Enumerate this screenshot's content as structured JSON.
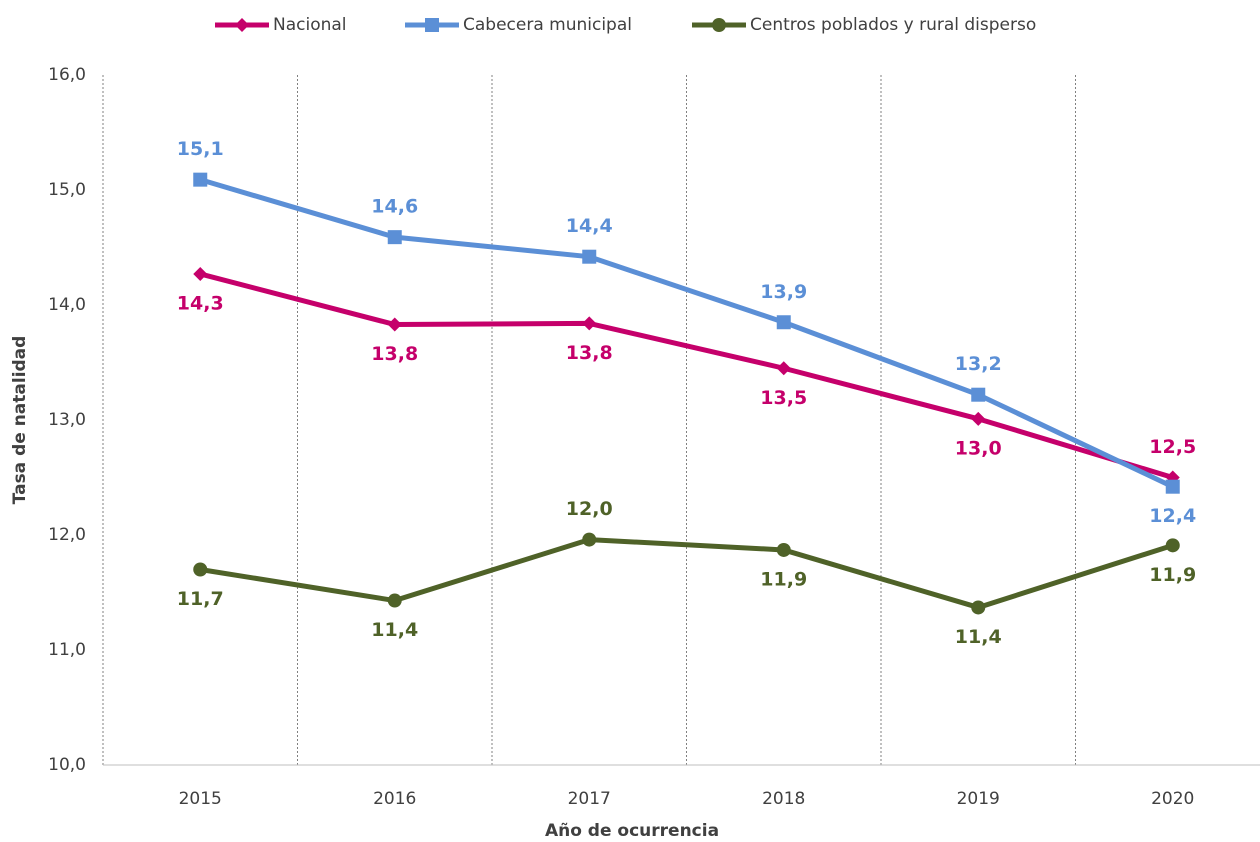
{
  "chart_data": {
    "type": "line",
    "x_label": "Año de ocurrencia",
    "y_label": "Tasa de natalidad",
    "categories": [
      "2015",
      "2016",
      "2017",
      "2018",
      "2019",
      "2020"
    ],
    "series": [
      {
        "name": "Nacional",
        "color": "#c5006b",
        "marker": "diamond",
        "values": [
          14.27,
          13.83,
          13.84,
          13.45,
          13.01,
          12.5
        ],
        "value_labels": [
          "14,3",
          "13,8",
          "13,8",
          "13,5",
          "13,0",
          "12,5"
        ]
      },
      {
        "name": "Cabecera municipal",
        "color": "#5b8fd6",
        "marker": "square",
        "values": [
          15.09,
          14.59,
          14.42,
          13.85,
          13.22,
          12.42
        ],
        "value_labels": [
          "15,1",
          "14,6",
          "14,4",
          "13,9",
          "13,2",
          "12,4"
        ]
      },
      {
        "name": "Centros poblados y rural disperso",
        "color": "#4f6228",
        "marker": "circle",
        "values": [
          11.7,
          11.43,
          11.96,
          11.87,
          11.37,
          11.91
        ],
        "value_labels": [
          "11,7",
          "11,4",
          "12,0",
          "11,9",
          "11,4",
          "11,9"
        ]
      }
    ],
    "ylim": [
      10,
      16
    ],
    "yticks": [
      {
        "value": 10,
        "label": "10,0"
      },
      {
        "value": 11,
        "label": "11,0"
      },
      {
        "value": 12,
        "label": "12,0"
      },
      {
        "value": 13,
        "label": "13,0"
      },
      {
        "value": 14,
        "label": "14,0"
      },
      {
        "value": 15,
        "label": "15,0"
      },
      {
        "value": 16,
        "label": "16,0"
      }
    ],
    "legend": "top"
  }
}
